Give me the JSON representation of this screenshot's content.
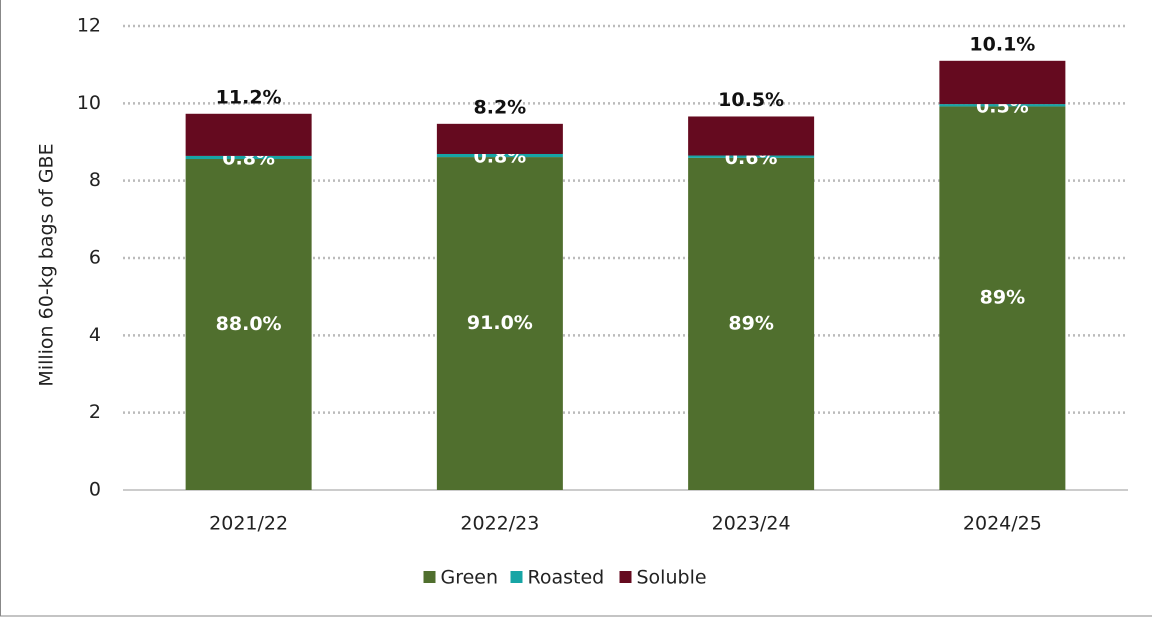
{
  "chart_data": {
    "type": "bar",
    "stacked": true,
    "ylabel": "Million 60-kg bags of GBE",
    "categories": [
      "2021/22",
      "2022/23",
      "2023/24",
      "2024/25"
    ],
    "series": [
      {
        "name": "Green",
        "color": "#506f2e",
        "values": [
          8.56,
          8.61,
          8.59,
          9.92
        ],
        "labels": [
          "88.0%",
          "91.0%",
          "89%",
          "89%"
        ]
      },
      {
        "name": "Roasted",
        "color": "#17a5a5",
        "values": [
          0.08,
          0.08,
          0.06,
          0.06
        ],
        "labels": [
          "0.8%",
          "0.8%",
          "0.6%",
          "0.5%"
        ]
      },
      {
        "name": "Soluble",
        "color": "#650a1f",
        "values": [
          1.09,
          0.78,
          1.01,
          1.12
        ],
        "labels": [
          "11.2%",
          "8.2%",
          "10.5%",
          "10.1%"
        ]
      }
    ],
    "ylim": [
      0,
      12
    ],
    "yticks": [
      0,
      2,
      4,
      6,
      8,
      10,
      12
    ],
    "grid": true,
    "legend": "bottom"
  }
}
